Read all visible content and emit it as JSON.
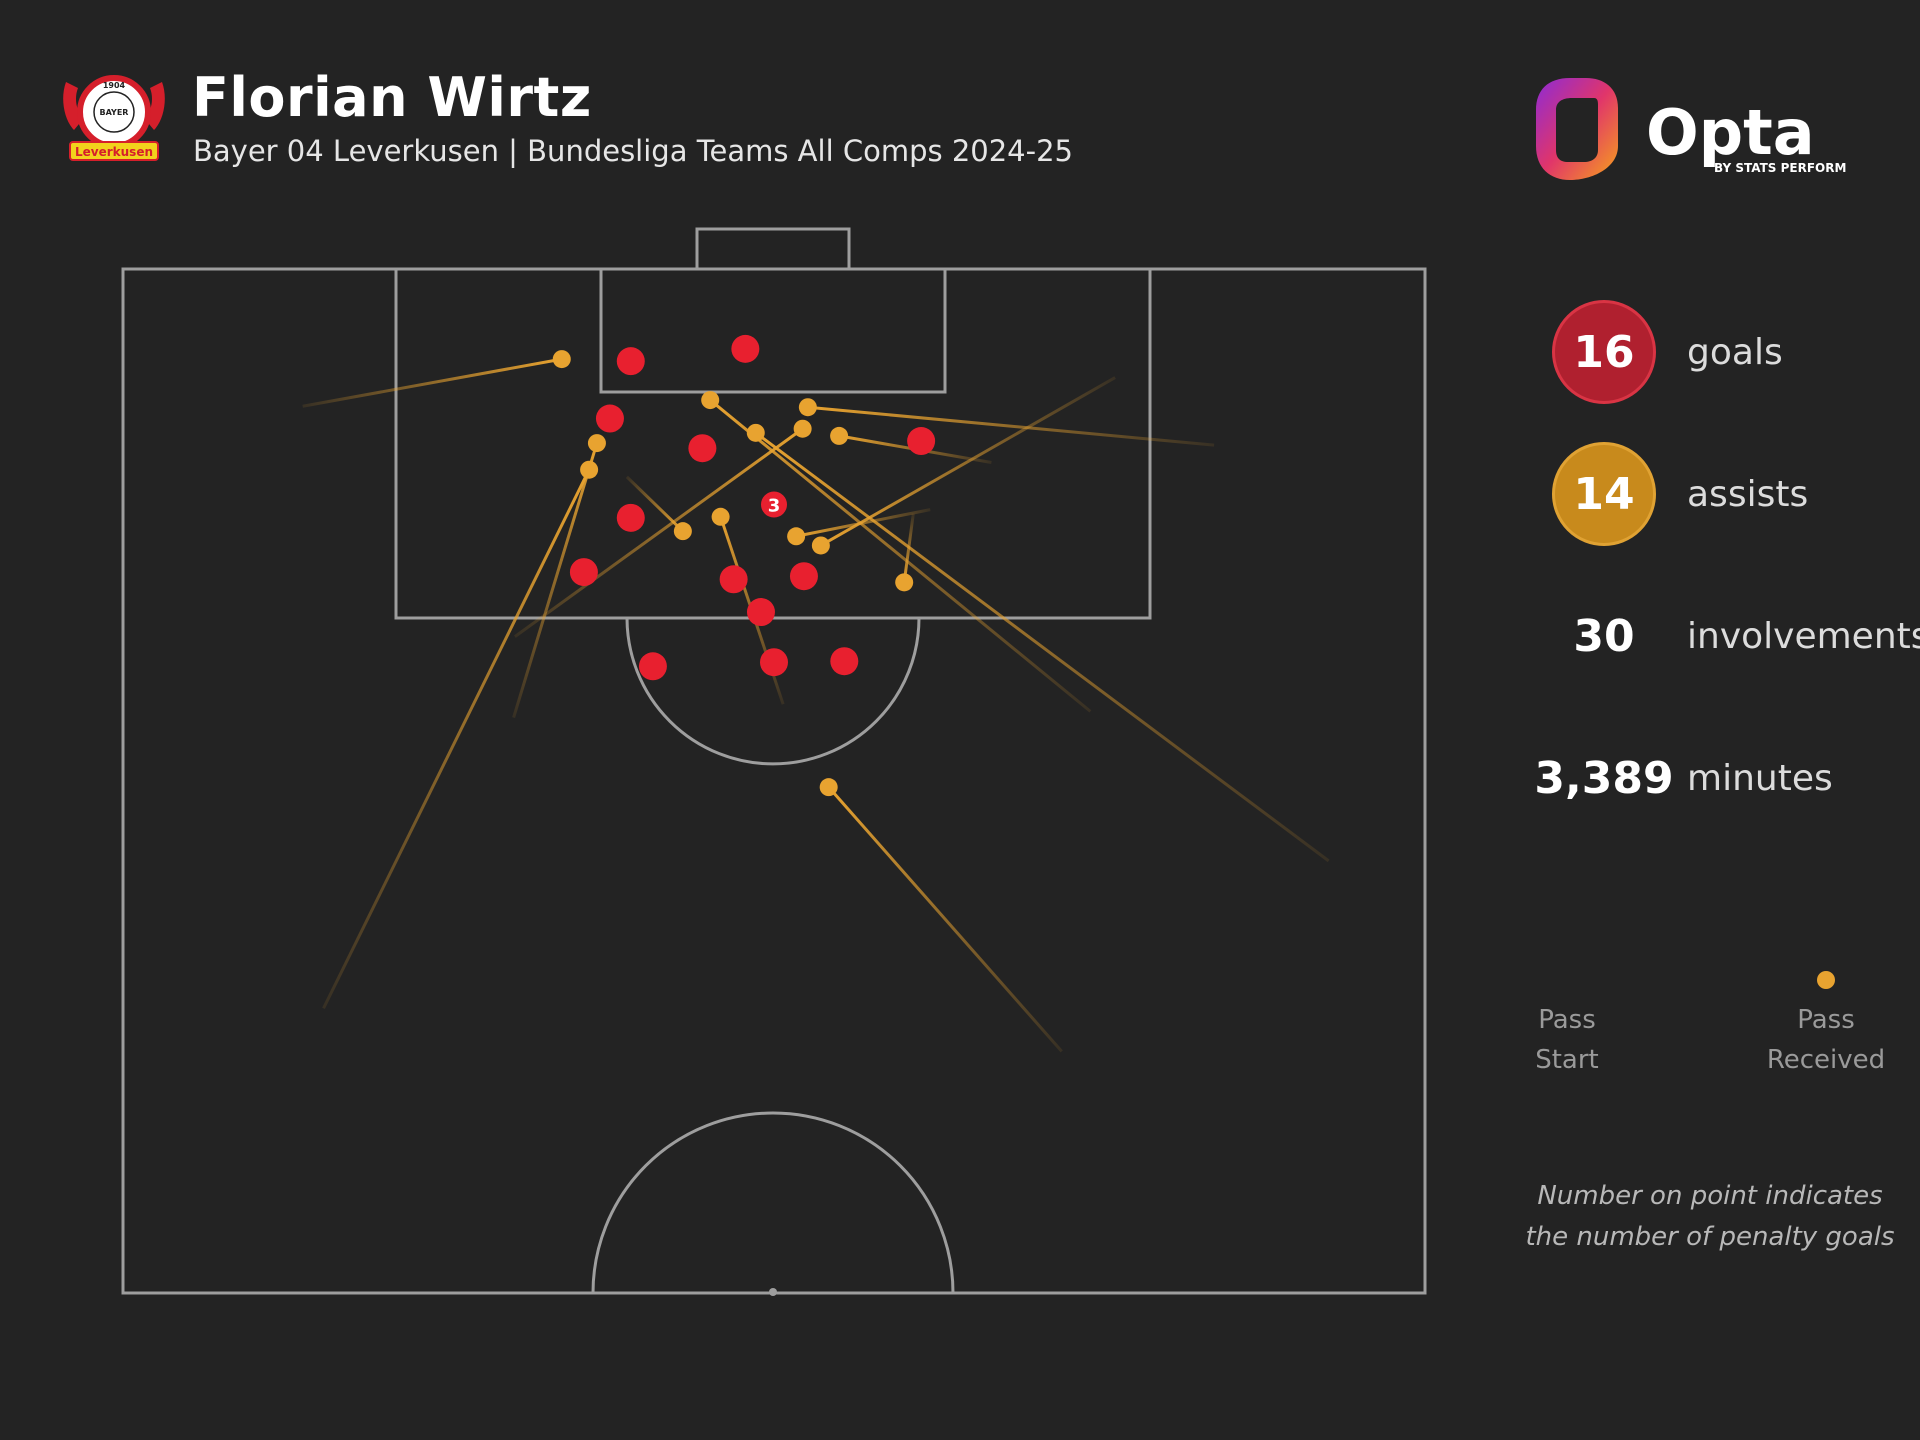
{
  "header": {
    "player_name": "Florian Wirtz",
    "subtitle": "Bayer 04 Leverkusen | Bundesliga Teams All Comps 2024-25",
    "crest_text": [
      "1904",
      "BAYER",
      "Leverkusen"
    ]
  },
  "brand": {
    "logo_text": "Opta",
    "logo_sub": "BY STATS PERFORM"
  },
  "stats": {
    "goals": {
      "value": "16",
      "label": "goals"
    },
    "assists": {
      "value": "14",
      "label": "assists"
    },
    "involvements": {
      "value": "30",
      "label": "involvements"
    },
    "minutes": {
      "value": "3,389",
      "label": "minutes"
    }
  },
  "legend": {
    "start": [
      "Pass",
      "Start"
    ],
    "received": [
      "Pass",
      "Received"
    ]
  },
  "note": [
    "Number on point indicates",
    "the number of penalty goals"
  ],
  "colors": {
    "background": "#232323",
    "pitch_lines": "#9e9e9e",
    "goal": "#e8202f",
    "assist": "#e8a330"
  },
  "chart_data": {
    "type": "scatter",
    "coordinate_system": "pitch half; x = 0 (left touchline) to 100 (right touchline), y = 0 (goal line) to 100 (halfway line)",
    "goals": [
      {
        "x": 39.0,
        "y": 9.0
      },
      {
        "x": 47.8,
        "y": 7.8
      },
      {
        "x": 37.4,
        "y": 14.6
      },
      {
        "x": 44.5,
        "y": 17.5
      },
      {
        "x": 61.3,
        "y": 16.8
      },
      {
        "x": 50.0,
        "y": 23.0,
        "penalties": "3"
      },
      {
        "x": 39.0,
        "y": 24.3
      },
      {
        "x": 35.4,
        "y": 29.6
      },
      {
        "x": 46.9,
        "y": 30.3
      },
      {
        "x": 52.3,
        "y": 30.0
      },
      {
        "x": 49.0,
        "y": 33.5
      },
      {
        "x": 40.7,
        "y": 38.8
      },
      {
        "x": 50.0,
        "y": 38.4
      },
      {
        "x": 55.4,
        "y": 38.3
      }
    ],
    "assists": [
      {
        "start": [
          13.8,
          13.4
        ],
        "end": [
          33.7,
          8.8
        ]
      },
      {
        "start": [
          30.0,
          43.8
        ],
        "end": [
          36.4,
          17.0
        ]
      },
      {
        "start": [
          15.4,
          72.2
        ],
        "end": [
          35.8,
          19.6
        ]
      },
      {
        "start": [
          38.7,
          20.3
        ],
        "end": [
          43.0,
          25.6
        ]
      },
      {
        "start": [
          30.1,
          35.9
        ],
        "end": [
          52.2,
          15.6
        ]
      },
      {
        "start": [
          50.7,
          42.5
        ],
        "end": [
          45.9,
          24.2
        ]
      },
      {
        "start": [
          74.3,
          43.2
        ],
        "end": [
          45.1,
          12.8
        ]
      },
      {
        "start": [
          92.6,
          57.8
        ],
        "end": [
          48.6,
          16.0
        ]
      },
      {
        "start": [
          83.8,
          17.2
        ],
        "end": [
          52.6,
          13.5
        ]
      },
      {
        "start": [
          66.7,
          18.9
        ],
        "end": [
          55.0,
          16.3
        ]
      },
      {
        "start": [
          62.0,
          23.5
        ],
        "end": [
          51.7,
          26.1
        ]
      },
      {
        "start": [
          76.2,
          10.6
        ],
        "end": [
          53.6,
          27.0
        ]
      },
      {
        "start": [
          60.7,
          23.9
        ],
        "end": [
          60.0,
          30.6
        ]
      },
      {
        "start": [
          72.1,
          76.4
        ],
        "end": [
          54.2,
          50.6
        ]
      }
    ]
  }
}
